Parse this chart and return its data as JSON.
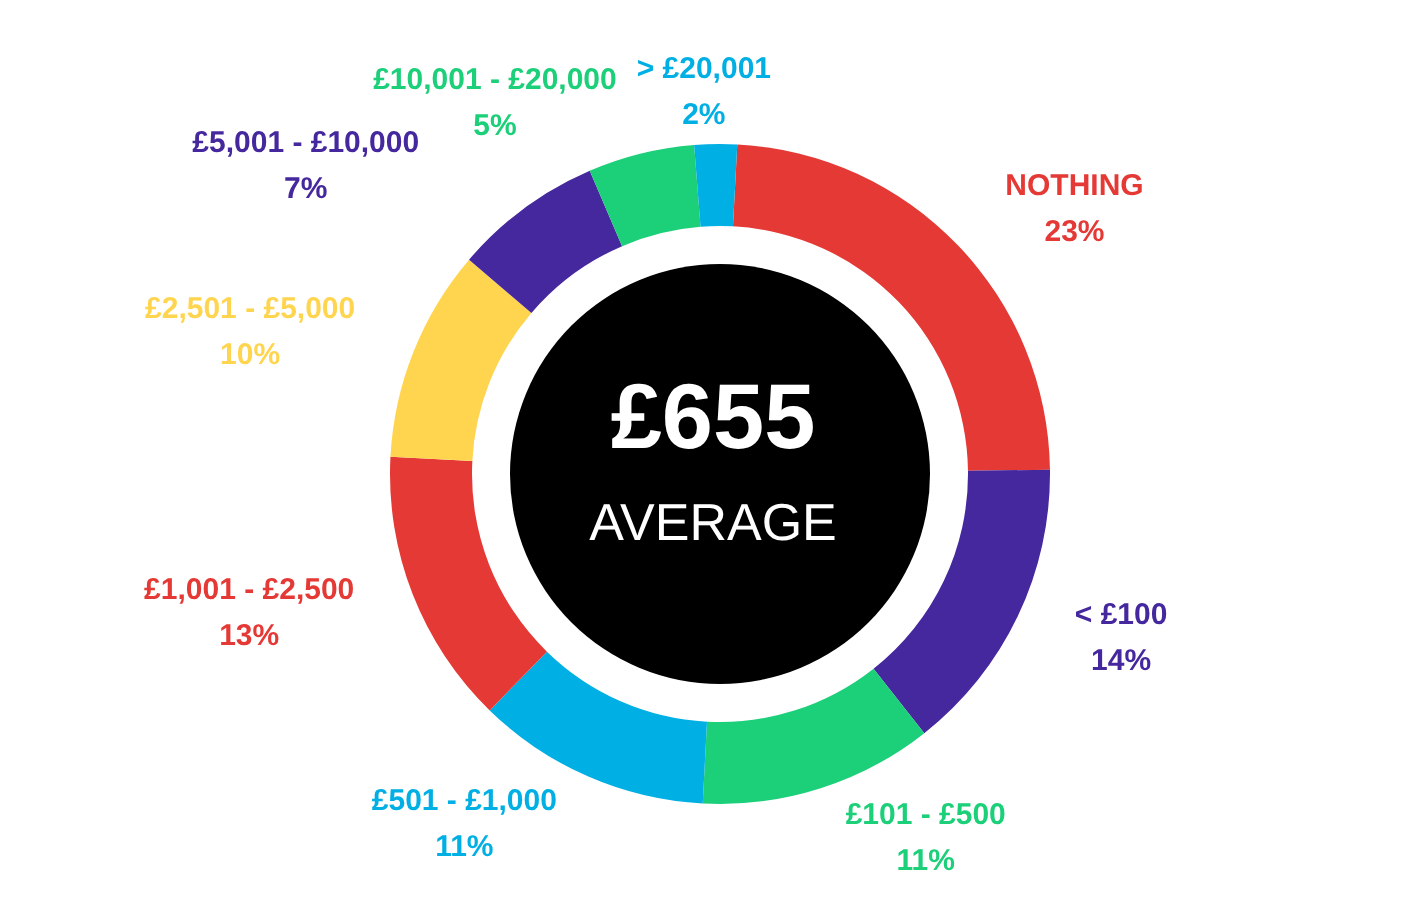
{
  "chart_data": {
    "type": "donut",
    "categories": [
      "NOTHING",
      "< £100",
      "£101 - £500",
      "£501 - £1,000",
      "£1,001 - £2,500",
      "£2,501 - £5,000",
      "£5,001 - £10,000",
      "£10,001 - £20,000",
      "> £20,001"
    ],
    "values": [
      23,
      14,
      11,
      11,
      13,
      10,
      7,
      5,
      2
    ],
    "value_labels": [
      "23%",
      "14%",
      "11%",
      "11%",
      "13%",
      "10%",
      "7%",
      "5%",
      "2%"
    ],
    "colors": [
      "#e53935",
      "#45279e",
      "#1ccf79",
      "#00afe3",
      "#e53935",
      "#ffd54f",
      "#45279e",
      "#1ccf79",
      "#00afe3"
    ],
    "annotations": [
      "£655",
      "AVERAGE"
    ],
    "legend": false
  }
}
